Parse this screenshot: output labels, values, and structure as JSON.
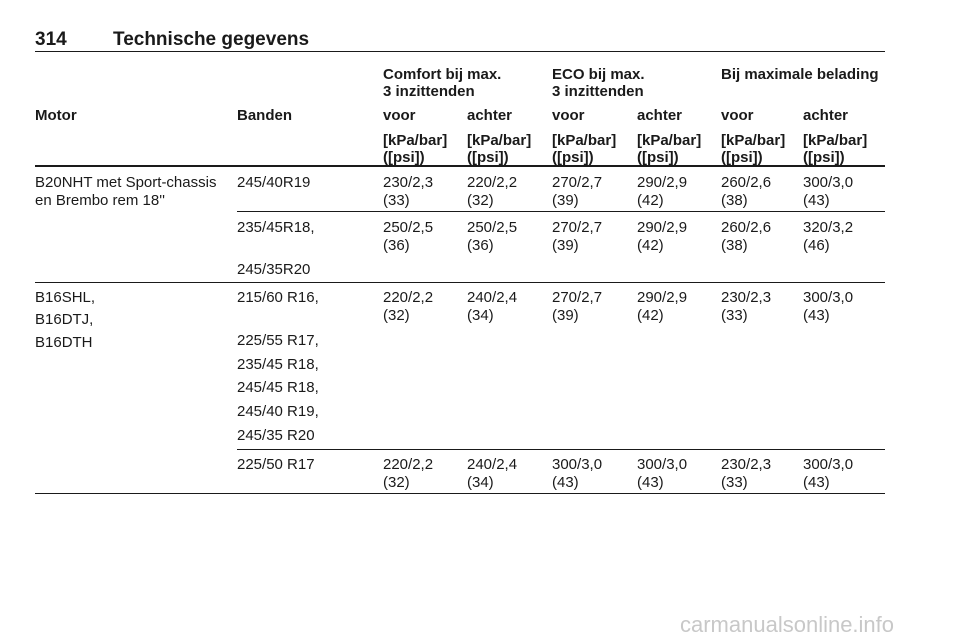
{
  "header": {
    "page_number": "314",
    "title": "Technische gegevens"
  },
  "table": {
    "group_headers": [
      [
        "Comfort bij max.",
        "3 inzittenden"
      ],
      [
        "ECO bij max.",
        "3 inzittenden"
      ],
      [
        "Bij maximale belading"
      ]
    ],
    "columns": [
      "Motor",
      "Banden",
      "voor",
      "achter",
      "voor",
      "achter",
      "voor",
      "achter"
    ],
    "units": [
      [
        "[kPa/bar]",
        "([psi])"
      ],
      [
        "[kPa/bar]",
        "([psi])"
      ],
      [
        "[kPa/bar]",
        "([psi])"
      ],
      [
        "[kPa/bar]",
        "([psi])"
      ],
      [
        "[kPa/bar]",
        "([psi])"
      ],
      [
        "[kPa/bar]",
        "([psi])"
      ]
    ],
    "rows": [
      {
        "motor": [
          "B20NHT met Sport-chassis",
          "en Brembo rem 18''"
        ],
        "tyres": [
          "245/40R19"
        ],
        "values": [
          [
            "230/2,3",
            "(33)"
          ],
          [
            "220/2,2",
            "(32)"
          ],
          [
            "270/2,7",
            "(39)"
          ],
          [
            "290/2,9",
            "(42)"
          ],
          [
            "260/2,6",
            "(38)"
          ],
          [
            "300/3,0",
            "(43)"
          ]
        ]
      },
      {
        "motor": [],
        "tyres": [
          "235/45R18,",
          "245/35R20"
        ],
        "values": [
          [
            "250/2,5",
            "(36)"
          ],
          [
            "250/2,5",
            "(36)"
          ],
          [
            "270/2,7",
            "(39)"
          ],
          [
            "290/2,9",
            "(42)"
          ],
          [
            "260/2,6",
            "(38)"
          ],
          [
            "320/3,2",
            "(46)"
          ]
        ]
      },
      {
        "motor": [
          "B16SHL,",
          "B16DTJ,",
          "B16DTH"
        ],
        "tyres": [
          "215/60 R16,",
          "225/55 R17,",
          "235/45 R18,",
          "245/45 R18,",
          "245/40 R19,",
          "245/35 R20"
        ],
        "values": [
          [
            "220/2,2",
            "(32)"
          ],
          [
            "240/2,4",
            "(34)"
          ],
          [
            "270/2,7",
            "(39)"
          ],
          [
            "290/2,9",
            "(42)"
          ],
          [
            "230/2,3",
            "(33)"
          ],
          [
            "300/3,0",
            "(43)"
          ]
        ]
      },
      {
        "motor": [],
        "tyres": [
          "225/50 R17"
        ],
        "values": [
          [
            "220/2,2",
            "(32)"
          ],
          [
            "240/2,4",
            "(34)"
          ],
          [
            "300/3,0",
            "(43)"
          ],
          [
            "300/3,0",
            "(43)"
          ],
          [
            "230/2,3",
            "(33)"
          ],
          [
            "300/3,0",
            "(43)"
          ]
        ]
      }
    ]
  },
  "watermark": "carmanualsonline.info"
}
